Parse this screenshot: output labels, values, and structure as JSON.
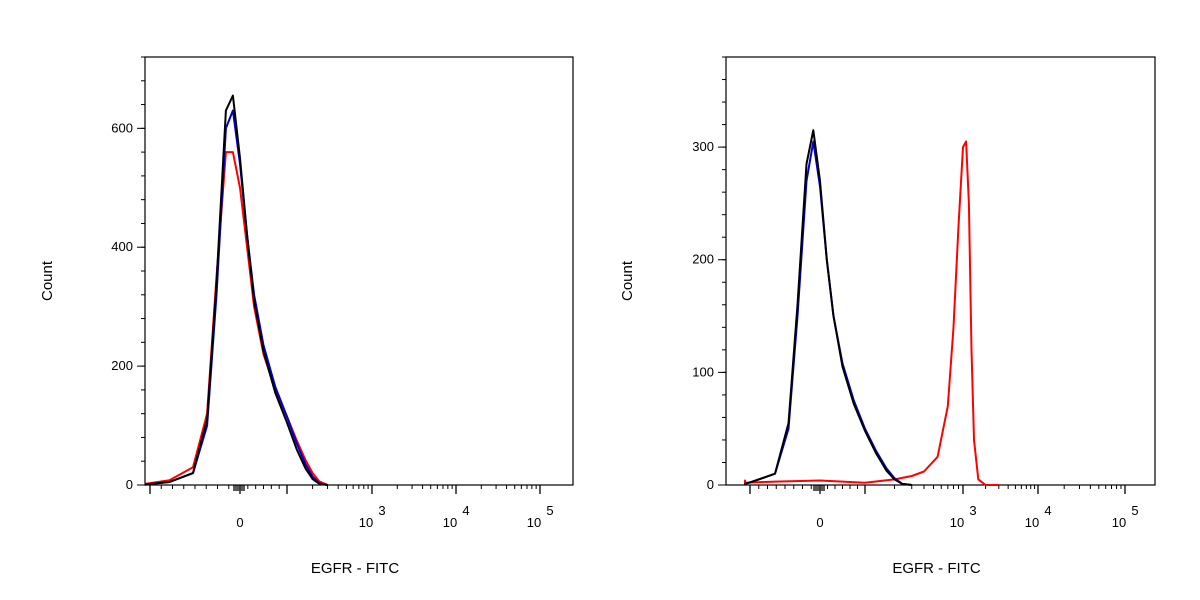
{
  "chart_data": [
    {
      "type": "line",
      "title": "",
      "xlabel": "EGFR - FITC",
      "ylabel": "Count",
      "x_scale": "biexponential",
      "y_ticks": [
        {
          "value": 0,
          "label": "0"
        },
        {
          "value": 200,
          "label": "200"
        },
        {
          "value": 400,
          "label": "400"
        },
        {
          "value": 600,
          "label": "600"
        }
      ],
      "x_ticks": [
        {
          "value": 0,
          "label": "0",
          "exp": ""
        },
        {
          "value": 1000,
          "label": "10",
          "exp": "3"
        },
        {
          "value": 10000,
          "label": "10",
          "exp": "4"
        },
        {
          "value": 100000,
          "label": "10",
          "exp": "5"
        }
      ],
      "ylim": [
        0,
        720
      ],
      "grid": false,
      "series": [
        {
          "color": "#ff0000",
          "x": [
            -300,
            -200,
            -150,
            -100,
            -70,
            -50,
            -30,
            -15,
            0,
            15,
            30,
            50,
            75,
            100,
            130,
            165,
            200,
            240,
            300
          ],
          "y": [
            0,
            2,
            8,
            30,
            120,
            350,
            560,
            560,
            500,
            400,
            300,
            220,
            160,
            115,
            75,
            42,
            20,
            6,
            0
          ]
        },
        {
          "color": "#0000cc",
          "x": [
            -300,
            -200,
            -150,
            -100,
            -70,
            -50,
            -30,
            -15,
            0,
            15,
            30,
            50,
            75,
            100,
            130,
            165,
            200,
            240,
            300
          ],
          "y": [
            0,
            1,
            5,
            20,
            100,
            320,
            600,
            630,
            540,
            420,
            320,
            235,
            165,
            115,
            70,
            35,
            14,
            3,
            0
          ]
        },
        {
          "color": "#000000",
          "x": [
            -300,
            -200,
            -150,
            -100,
            -70,
            -50,
            -30,
            -15,
            0,
            15,
            30,
            50,
            75,
            100,
            130,
            165,
            200,
            240,
            300
          ],
          "y": [
            0,
            1,
            5,
            20,
            110,
            340,
            630,
            655,
            550,
            420,
            310,
            225,
            155,
            105,
            60,
            28,
            10,
            2,
            0
          ]
        }
      ]
    },
    {
      "type": "line",
      "title": "",
      "xlabel": "EGFR - FITC",
      "ylabel": "Count",
      "x_scale": "biexponential",
      "y_ticks": [
        {
          "value": 0,
          "label": "0"
        },
        {
          "value": 100,
          "label": "100"
        },
        {
          "value": 200,
          "label": "200"
        },
        {
          "value": 300,
          "label": "300"
        }
      ],
      "x_ticks": [
        {
          "value": 0,
          "label": "0",
          "exp": ""
        },
        {
          "value": 1000,
          "label": "10",
          "exp": "3"
        },
        {
          "value": 10000,
          "label": "10",
          "exp": "4"
        },
        {
          "value": 100000,
          "label": "10",
          "exp": "5"
        }
      ],
      "ylim": [
        0,
        380
      ],
      "grid": false,
      "series": [
        {
          "color": "#ff0000",
          "x": [
            -700,
            -500,
            -300,
            -200,
            -100,
            0,
            100,
            200,
            300,
            400,
            550,
            700,
            800,
            900,
            1000,
            1100,
            1200,
            1300,
            1400,
            1600,
            2000,
            3000
          ],
          "y": [
            0,
            3,
            4,
            2,
            3,
            4,
            2,
            5,
            8,
            12,
            25,
            70,
            140,
            230,
            300,
            305,
            250,
            120,
            40,
            5,
            0,
            0
          ]
        },
        {
          "color": "#0000cc",
          "x": [
            -300,
            -200,
            -150,
            -100,
            -70,
            -50,
            -30,
            -15,
            0,
            15,
            30,
            50,
            75,
            100,
            130,
            165,
            200,
            240,
            300
          ],
          "y": [
            0,
            1,
            3,
            10,
            50,
            150,
            270,
            305,
            265,
            200,
            150,
            108,
            75,
            50,
            30,
            15,
            6,
            1,
            0
          ]
        },
        {
          "color": "#000000",
          "x": [
            -300,
            -200,
            -150,
            -100,
            -70,
            -50,
            -30,
            -15,
            0,
            15,
            30,
            50,
            75,
            100,
            130,
            165,
            200,
            240,
            300
          ],
          "y": [
            0,
            1,
            3,
            10,
            55,
            160,
            285,
            315,
            270,
            200,
            150,
            105,
            72,
            48,
            28,
            13,
            5,
            1,
            0
          ]
        }
      ]
    }
  ]
}
